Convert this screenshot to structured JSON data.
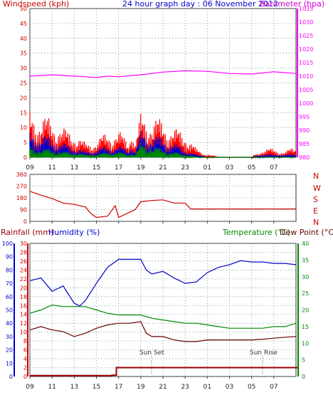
{
  "header": {
    "left_label": "Windspeed (kph)",
    "center_title": "24 hour graph day : 06 November 2012",
    "right_label": "Barometer (hpa)"
  },
  "bottom_header": {
    "rainfall_label": "Rainfall (mm)",
    "humidity_label": "Humidity (%)",
    "temperature_label": "Temperature (°C)",
    "dewpoint_label": "Dew Point (°C)"
  },
  "direction_labels": [
    "N",
    "W",
    "S",
    "E",
    "N"
  ],
  "annotations": {
    "sunset": "Sun Set",
    "sunrise": "Sun Rise"
  },
  "x_ticks": [
    "11",
    "13",
    "15",
    "17",
    "19",
    "21",
    "23",
    "01",
    "03",
    "05",
    "07",
    "09"
  ],
  "colors": {
    "wind": "#ff0000",
    "gust_avg": "#0000cc",
    "wind_green": "#008800",
    "barometer": "#ff00ff",
    "direction": "#cc0000",
    "humidity": "#0000cc",
    "temperature": "#008800",
    "dewpoint": "#660000",
    "rain": "#990000",
    "grid": "#6a8a8a",
    "left_axis": "#cc0000",
    "blue_axis": "#0000cc",
    "green_axis": "#008800"
  },
  "chart_data": [
    {
      "id": "wind_barometer",
      "type": "line",
      "x_unit": "hour",
      "x_range": [
        9,
        33
      ],
      "left_axis": {
        "label": "Windspeed (kph)",
        "ticks": [
          "0",
          "5",
          "10",
          "15",
          "20",
          "25",
          "30",
          "35",
          "40",
          "45",
          "50"
        ],
        "ylim": [
          0,
          50
        ]
      },
      "right_axis": {
        "label": "Barometer (hpa)",
        "ticks": [
          "980",
          "985",
          "990",
          "995",
          "1000",
          "1005",
          "1010",
          "1015",
          "1020",
          "1025",
          "1030",
          "1035"
        ],
        "ylim": [
          980,
          1035
        ]
      },
      "series": [
        {
          "name": "Windspeed (kph)",
          "axis": "left",
          "style": "spiky",
          "color": "#ff0000",
          "x": [
            9,
            10,
            11,
            12,
            13,
            14,
            15,
            16,
            17,
            18,
            18.5,
            19,
            20,
            21,
            22,
            23,
            24,
            25,
            26,
            27,
            28,
            29,
            30,
            31,
            32,
            33
          ],
          "y": [
            17,
            14,
            14,
            10,
            9,
            5,
            6,
            9,
            9,
            6,
            5,
            15,
            14,
            13,
            10,
            9,
            3,
            1,
            0,
            0,
            0,
            0,
            3,
            3,
            2,
            4
          ]
        },
        {
          "axis": "left",
          "style": "spiky",
          "color": "#0000cc",
          "x": [
            9,
            10,
            11,
            12,
            13,
            14,
            15,
            16,
            17,
            18,
            18.5,
            19,
            20,
            21,
            22,
            23,
            24,
            25,
            26,
            27,
            28,
            29,
            30,
            31,
            32,
            33
          ],
          "y": [
            9,
            8,
            7,
            5,
            4,
            2,
            3,
            4,
            4,
            3,
            2,
            9,
            8,
            7,
            5,
            3,
            1,
            0,
            0,
            0,
            0,
            0,
            1,
            1,
            1,
            1
          ]
        },
        {
          "axis": "left",
          "style": "spiky",
          "color": "#008800",
          "x": [
            9,
            10,
            11,
            12,
            13,
            14,
            15,
            16,
            17,
            18,
            18.5,
            19,
            20,
            21,
            22,
            23,
            24,
            25,
            26,
            27,
            28,
            29,
            30,
            31,
            32,
            33
          ],
          "y": [
            4,
            3,
            3,
            2,
            2,
            1,
            1,
            2,
            2,
            1,
            1,
            5,
            4,
            3,
            2,
            1,
            0,
            0,
            0,
            0,
            0,
            0,
            0,
            0,
            0,
            0
          ]
        },
        {
          "name": "Barometer (hpa)",
          "axis": "right",
          "style": "line",
          "color": "#ff00ff",
          "x": [
            9,
            11,
            13,
            14,
            15,
            16,
            17,
            19,
            21,
            23,
            25,
            27,
            29,
            31,
            33
          ],
          "y": [
            1010,
            1010.5,
            1010,
            1009.8,
            1009.5,
            1010,
            1009.8,
            1010.5,
            1011.5,
            1012,
            1011.8,
            1011,
            1010.8,
            1011.6,
            1011
          ]
        }
      ]
    },
    {
      "id": "wind_direction",
      "type": "line",
      "x_range": [
        9,
        33
      ],
      "y_axis": {
        "ticks": [
          "0",
          "90",
          "180",
          "270",
          "360"
        ],
        "ylim": [
          0,
          360
        ]
      },
      "series": [
        {
          "axis": "left",
          "style": "line",
          "color": "#cc0000",
          "x": [
            9,
            10,
            11,
            12,
            13,
            14,
            14.5,
            15,
            16,
            16.7,
            17,
            17.5,
            18,
            18.5,
            19,
            20,
            21,
            22,
            23,
            23.5,
            24,
            26,
            28,
            30,
            33
          ],
          "y": [
            230,
            200,
            175,
            140,
            130,
            110,
            60,
            30,
            40,
            120,
            30,
            50,
            70,
            90,
            150,
            160,
            165,
            140,
            140,
            95,
            95,
            95,
            95,
            95,
            95
          ]
        }
      ]
    },
    {
      "id": "temp_humidity_rain",
      "type": "line",
      "x_range": [
        9,
        33
      ],
      "left_axis_humidity": {
        "label": "Humidity (%)",
        "ticks": [
          "0",
          "10",
          "20",
          "30",
          "40",
          "50",
          "60",
          "70",
          "80",
          "90",
          "100"
        ],
        "ylim": [
          0,
          100
        ]
      },
      "left_axis_rain": {
        "label": "Rainfall (mm)",
        "ticks": [
          "0",
          "2",
          "4",
          "6",
          "8",
          "10",
          "12",
          "14",
          "16",
          "18",
          "20",
          "22",
          "24",
          "26",
          "28",
          "30"
        ],
        "ylim": [
          0,
          30
        ]
      },
      "right_axis": {
        "label": "Temperature (°C)",
        "ticks": [
          "0",
          "5",
          "10",
          "15",
          "20",
          "25",
          "30",
          "35",
          "40"
        ],
        "ylim": [
          0,
          40
        ]
      },
      "series": [
        {
          "name": "Humidity (%)",
          "axis": "humidity",
          "style": "line",
          "color": "#0000cc",
          "x": [
            9,
            10,
            11,
            12,
            13,
            13.5,
            14,
            15,
            16,
            17,
            18,
            19,
            19.5,
            20,
            21,
            22,
            23,
            24,
            25,
            26,
            27,
            28,
            29,
            30,
            31,
            32,
            33
          ],
          "y": [
            72,
            74,
            64,
            68,
            55,
            53,
            57,
            70,
            82,
            88,
            88,
            88,
            80,
            77,
            79,
            74,
            70,
            71,
            78,
            82,
            84,
            87,
            86,
            86,
            85,
            85,
            84
          ]
        },
        {
          "name": "Temperature (°C)",
          "axis": "right",
          "style": "line",
          "color": "#008800",
          "x": [
            9,
            10,
            11,
            12,
            13,
            14,
            15,
            16,
            17,
            18,
            19,
            20,
            21,
            22,
            23,
            24,
            25,
            26,
            27,
            28,
            29,
            30,
            31,
            32,
            33
          ],
          "y": [
            19,
            20,
            21.5,
            21,
            21,
            21,
            20,
            19,
            18.5,
            18.5,
            18.5,
            17.5,
            17,
            16.5,
            16,
            16,
            15.5,
            15,
            14.5,
            14.5,
            14.5,
            14.5,
            15,
            15,
            16
          ]
        },
        {
          "name": "Dew Point (°C)",
          "axis": "right",
          "style": "line",
          "color": "#660000",
          "x": [
            9,
            10,
            11,
            12,
            13,
            14,
            15,
            16,
            17,
            18,
            19,
            19.5,
            20,
            21,
            22,
            23,
            24,
            25,
            26,
            27,
            28,
            29,
            30,
            31,
            32,
            33
          ],
          "y": [
            14,
            15,
            14,
            13.5,
            12,
            13,
            14.5,
            15.5,
            16,
            16,
            16.5,
            13,
            12,
            12,
            11,
            10.5,
            10.5,
            11,
            11,
            11,
            11,
            11,
            11.2,
            11.5,
            11.8,
            12
          ]
        },
        {
          "name": "Rainfall (mm)",
          "axis": "rain",
          "style": "step",
          "color": "#990000",
          "x": [
            9,
            15,
            16.4,
            16.8,
            33,
            33.2
          ],
          "y": [
            0.2,
            0.2,
            0.3,
            2,
            2,
            0
          ]
        }
      ]
    }
  ]
}
